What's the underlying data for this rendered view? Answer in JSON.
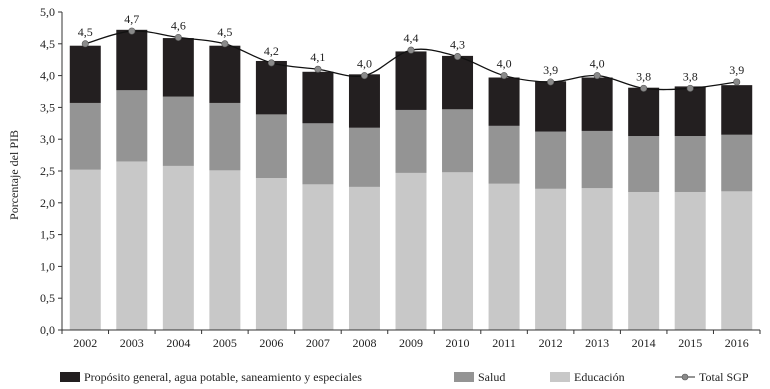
{
  "chart_data": {
    "type": "bar",
    "stacked": true,
    "categories": [
      "2002",
      "2003",
      "2004",
      "2005",
      "2006",
      "2007",
      "2008",
      "2009",
      "2010",
      "2011",
      "2012",
      "2013",
      "2014",
      "2015",
      "2016"
    ],
    "ylabel": "Porcentaje del PIB",
    "ylim": [
      0,
      5
    ],
    "yticks": [
      "0,0",
      "0,5",
      "1,0",
      "1,5",
      "2,0",
      "2,5",
      "3,0",
      "3,5",
      "4,0",
      "4,5",
      "5,0"
    ],
    "grid": false,
    "legend_position": "bottom",
    "series": [
      {
        "name": "Educación",
        "color": "#c8c8c8",
        "values": [
          2.52,
          2.65,
          2.58,
          2.51,
          2.39,
          2.29,
          2.25,
          2.47,
          2.48,
          2.3,
          2.22,
          2.23,
          2.17,
          2.17,
          2.18
        ]
      },
      {
        "name": "Salud",
        "color": "#949494",
        "values": [
          1.05,
          1.12,
          1.09,
          1.06,
          1.0,
          0.96,
          0.93,
          0.99,
          0.99,
          0.91,
          0.9,
          0.9,
          0.88,
          0.88,
          0.89
        ]
      },
      {
        "name": "Propósito general, agua potable, saneamiento y especiales",
        "color": "#231f20",
        "values": [
          0.9,
          0.95,
          0.92,
          0.9,
          0.84,
          0.81,
          0.84,
          0.92,
          0.84,
          0.76,
          0.79,
          0.84,
          0.76,
          0.78,
          0.78
        ]
      }
    ],
    "total": {
      "name": "Total SGP",
      "color": "#555555",
      "values": [
        4.5,
        4.7,
        4.6,
        4.5,
        4.2,
        4.1,
        4.0,
        4.4,
        4.3,
        4.0,
        3.9,
        4.0,
        3.8,
        3.8,
        3.9
      ],
      "labels": [
        "4,5",
        "4,7",
        "4,6",
        "4,5",
        "4,2",
        "4,1",
        "4,0",
        "4,4",
        "4,3",
        "4,0",
        "3,9",
        "4,0",
        "3,8",
        "3,8",
        "3,9"
      ]
    },
    "legend": [
      {
        "key": "prop",
        "label": "Propósito general, agua potable, saneamiento y especiales",
        "color": "#231f20",
        "kind": "box"
      },
      {
        "key": "salud",
        "label": "Salud",
        "color": "#949494",
        "kind": "box"
      },
      {
        "key": "edu",
        "label": "Educación",
        "color": "#c8c8c8",
        "kind": "box"
      },
      {
        "key": "total",
        "label": "Total SGP",
        "color": "#555555",
        "kind": "line"
      }
    ]
  }
}
